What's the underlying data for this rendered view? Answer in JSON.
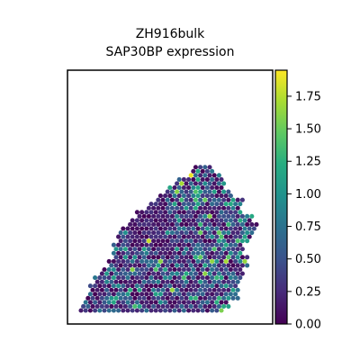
{
  "chart_data": {
    "type": "scatter",
    "title": "ZH916bulk",
    "subtitle": "SAP30BP expression",
    "xlabel": "",
    "ylabel": "",
    "grid": false,
    "legend": "colorbar-right",
    "colormap": "viridis",
    "colorbar": {
      "range": [
        0.0,
        1.95
      ],
      "ticks": [
        0.0,
        0.25,
        0.5,
        0.75,
        1.0,
        1.25,
        1.5,
        1.75
      ],
      "tick_labels": [
        "0.00",
        "0.25",
        "0.50",
        "0.75",
        "1.00",
        "1.25",
        "1.50",
        "1.75"
      ]
    },
    "tissue_shape": {
      "description_free": true,
      "hex_spacing": 1.0,
      "outline_rows": [
        [
          35,
          24,
          27
        ],
        [
          34,
          23,
          28
        ],
        [
          33,
          22,
          29
        ],
        [
          32,
          21,
          30
        ],
        [
          31,
          20,
          31
        ],
        [
          30,
          19,
          31
        ],
        [
          29,
          18,
          31
        ],
        [
          28,
          17,
          33
        ],
        [
          27,
          16,
          34
        ],
        [
          26,
          15,
          34
        ],
        [
          25,
          14,
          34
        ],
        [
          24,
          12,
          34
        ],
        [
          23,
          12,
          36
        ],
        [
          22,
          11,
          36
        ],
        [
          21,
          10,
          37
        ],
        [
          20,
          9,
          37
        ],
        [
          19,
          8,
          36
        ],
        [
          18,
          8,
          36
        ],
        [
          17,
          8,
          35
        ],
        [
          16,
          7,
          34
        ],
        [
          15,
          7,
          34
        ],
        [
          14,
          7,
          34
        ],
        [
          13,
          7,
          35
        ],
        [
          12,
          6,
          35
        ],
        [
          11,
          6,
          35
        ],
        [
          10,
          5,
          34
        ],
        [
          9,
          4,
          34
        ],
        [
          8,
          3,
          34
        ],
        [
          7,
          3,
          33
        ],
        [
          6,
          2,
          33
        ],
        [
          5,
          2,
          33
        ],
        [
          4,
          2,
          33
        ],
        [
          3,
          1,
          33
        ],
        [
          2,
          1,
          31
        ],
        [
          1,
          0,
          31
        ],
        [
          0,
          0,
          30
        ]
      ],
      "highlights": [
        {
          "row": 33,
          "col": 23,
          "value": 1.9
        },
        {
          "row": 31,
          "col": 21,
          "value": 1.7
        },
        {
          "row": 29,
          "col": 20,
          "value": 1.6
        },
        {
          "row": 27,
          "col": 26,
          "value": 1.5
        },
        {
          "row": 23,
          "col": 27,
          "value": 1.6
        },
        {
          "row": 21,
          "col": 25,
          "value": 1.3
        },
        {
          "row": 19,
          "col": 29,
          "value": 1.5
        },
        {
          "row": 18,
          "col": 30,
          "value": 1.4
        },
        {
          "row": 17,
          "col": 14,
          "value": 1.8
        },
        {
          "row": 15,
          "col": 28,
          "value": 1.4
        },
        {
          "row": 12,
          "col": 31,
          "value": 1.7
        },
        {
          "row": 10,
          "col": 16,
          "value": 1.4
        },
        {
          "row": 8,
          "col": 29,
          "value": 1.3
        },
        {
          "row": 5,
          "col": 12,
          "value": 1.2
        },
        {
          "row": 3,
          "col": 24,
          "value": 1.3
        },
        {
          "row": 26,
          "col": 32,
          "value": 1.2
        }
      ],
      "low_region": {
        "row_min": 16,
        "row_max": 30,
        "col_min": 10,
        "col_max": 17,
        "max_value": 0.35
      }
    }
  }
}
